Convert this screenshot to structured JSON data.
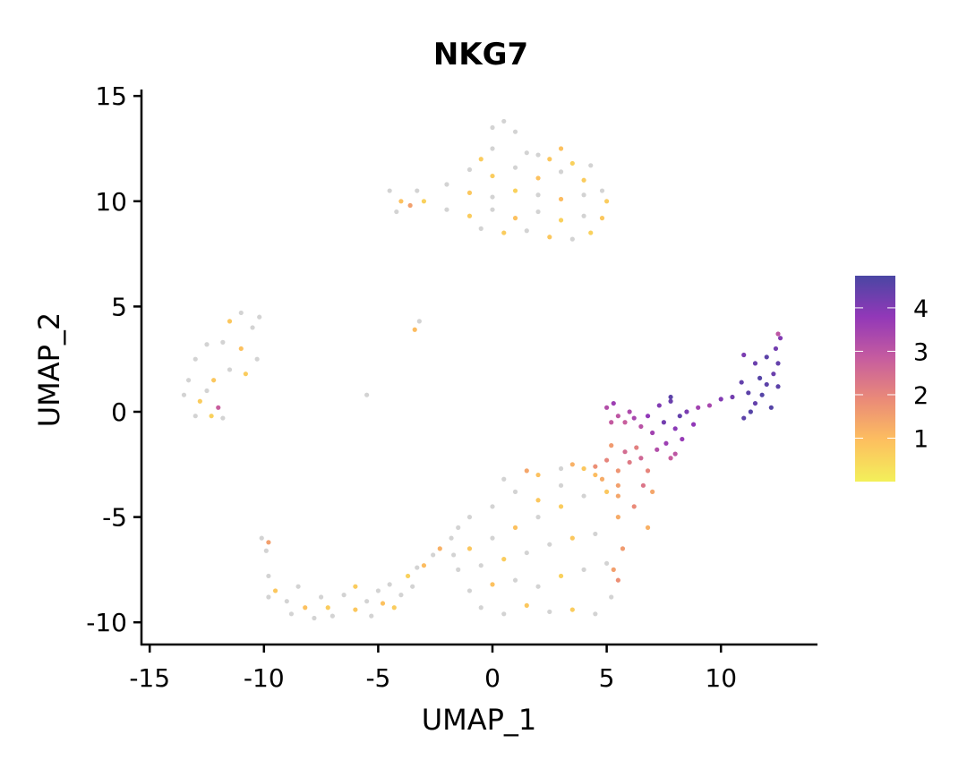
{
  "chart_data": {
    "type": "scatter",
    "title": "NKG7",
    "xlabel": "UMAP_1",
    "ylabel": "UMAP_2",
    "xlim": [
      -15.5,
      14.5
    ],
    "ylim": [
      -11,
      15.2
    ],
    "x_ticks": [
      -15,
      -10,
      -5,
      0,
      5,
      10
    ],
    "y_ticks": [
      -10,
      -5,
      0,
      5,
      10,
      15
    ],
    "grid": false,
    "zero_color": "#d3d3d3",
    "legend": {
      "type": "colorbar",
      "placement": "right",
      "ticks": [
        1,
        2,
        3,
        4
      ],
      "range": [
        0,
        4.74
      ],
      "colors": [
        "#f3f05a",
        "#fdbf5f",
        "#ea8a78",
        "#c65c9f",
        "#9238b8",
        "#4a46a3"
      ]
    },
    "point_format": [
      "UMAP_1",
      "UMAP_2",
      "expression"
    ],
    "points": [
      [
        0,
        13.5,
        0
      ],
      [
        0.5,
        13.8,
        0
      ],
      [
        1,
        13.3,
        0
      ],
      [
        0,
        12.5,
        0
      ],
      [
        1.5,
        12.3,
        0
      ],
      [
        2.5,
        12,
        0.8
      ],
      [
        3.5,
        11.8,
        0.6
      ],
      [
        4.3,
        11.7,
        0
      ],
      [
        -1,
        11.5,
        0
      ],
      [
        0,
        11.2,
        0.7
      ],
      [
        1,
        11.6,
        0
      ],
      [
        2,
        11.1,
        0.9
      ],
      [
        3,
        11.4,
        0
      ],
      [
        4,
        11,
        0.7
      ],
      [
        4.8,
        10.5,
        0
      ],
      [
        -2,
        10.8,
        0
      ],
      [
        -1,
        10.4,
        0.8
      ],
      [
        0,
        10.2,
        0
      ],
      [
        1,
        10.5,
        0.6
      ],
      [
        2,
        10.3,
        0
      ],
      [
        3,
        10.1,
        1.0
      ],
      [
        4,
        10.3,
        0
      ],
      [
        5,
        10,
        0.7
      ],
      [
        -3,
        10,
        0.6
      ],
      [
        -2,
        9.6,
        0
      ],
      [
        -1,
        9.3,
        0.7
      ],
      [
        0,
        9.6,
        0
      ],
      [
        1,
        9.2,
        0.9
      ],
      [
        2,
        9.5,
        0
      ],
      [
        3,
        9.1,
        0.6
      ],
      [
        4,
        9.3,
        0
      ],
      [
        4.8,
        9.2,
        0.8
      ],
      [
        -0.5,
        8.7,
        0
      ],
      [
        0.5,
        8.5,
        0.7
      ],
      [
        1.5,
        8.6,
        0
      ],
      [
        2.5,
        8.3,
        0.8
      ],
      [
        3.5,
        8.2,
        0
      ],
      [
        4.3,
        8.5,
        0.6
      ],
      [
        -4.5,
        10.5,
        0
      ],
      [
        -4,
        10,
        0.9
      ],
      [
        -3.6,
        9.8,
        1.5
      ],
      [
        -4.2,
        9.5,
        0
      ],
      [
        -3.3,
        10.5,
        0
      ],
      [
        -0.5,
        12,
        0.7
      ],
      [
        2,
        12.2,
        0
      ],
      [
        3,
        12.5,
        0.9
      ],
      [
        -11,
        4.7,
        0
      ],
      [
        -10.2,
        4.5,
        0
      ],
      [
        -11.5,
        4.3,
        0.8
      ],
      [
        -10.5,
        4,
        0
      ],
      [
        -11.8,
        3.3,
        0
      ],
      [
        -11,
        3,
        0.9
      ],
      [
        -10.3,
        2.5,
        0
      ],
      [
        -12.5,
        3.2,
        0
      ],
      [
        -11.5,
        2,
        0
      ],
      [
        -10.8,
        1.8,
        0.7
      ],
      [
        -13,
        2.5,
        0
      ],
      [
        -12.2,
        1.5,
        0.8
      ],
      [
        -13.3,
        1.5,
        0
      ],
      [
        -13.5,
        0.8,
        0
      ],
      [
        -12.8,
        0.5,
        0.7
      ],
      [
        -12,
        0.2,
        2.8
      ],
      [
        -13,
        -0.2,
        0
      ],
      [
        -12.3,
        -0.2,
        0.6
      ],
      [
        -11.8,
        -0.3,
        0
      ],
      [
        -12.5,
        1,
        0
      ],
      [
        -10.1,
        -6,
        0
      ],
      [
        -9.8,
        -6.2,
        1.5
      ],
      [
        -9.9,
        -6.6,
        0
      ],
      [
        -9.8,
        -7.8,
        0
      ],
      [
        -9.5,
        -8.5,
        0.8
      ],
      [
        -9.8,
        -8.8,
        0
      ],
      [
        -9,
        -9,
        0
      ],
      [
        -8.5,
        -8.3,
        0
      ],
      [
        -8.2,
        -9.3,
        0.9
      ],
      [
        -7.5,
        -8.8,
        0
      ],
      [
        -7,
        -9.7,
        0
      ],
      [
        -7.2,
        -9.3,
        0.7
      ],
      [
        -6.5,
        -8.7,
        0
      ],
      [
        -6,
        -9.4,
        0.8
      ],
      [
        -5.5,
        -9,
        0
      ],
      [
        -5,
        -8.5,
        0
      ],
      [
        -4.8,
        -9.1,
        0.9
      ],
      [
        -4.5,
        -8.2,
        0
      ],
      [
        -4,
        -8.7,
        0
      ],
      [
        -3.7,
        -7.8,
        0.6
      ],
      [
        -3.3,
        -7.4,
        0
      ],
      [
        -3,
        -7.3,
        1.0
      ],
      [
        -2.6,
        -6.8,
        0
      ],
      [
        -3.5,
        -8.3,
        0
      ],
      [
        -6,
        -8.3,
        0.7
      ],
      [
        -8.8,
        -9.6,
        0
      ],
      [
        -7.8,
        -9.8,
        0
      ],
      [
        -5.3,
        -9.7,
        0
      ],
      [
        -4.3,
        -9.3,
        0.7
      ],
      [
        -2.3,
        -6.5,
        1.2
      ],
      [
        -1.5,
        -5.5,
        0
      ],
      [
        -1.8,
        -6,
        0
      ],
      [
        -1,
        -5,
        0
      ],
      [
        0,
        -4.5,
        0
      ],
      [
        1,
        -3.8,
        0
      ],
      [
        2,
        -3,
        0.9
      ],
      [
        3,
        -2.7,
        0
      ],
      [
        3.5,
        -2.5,
        1.2
      ],
      [
        4,
        -2.7,
        0.8
      ],
      [
        1.5,
        -2.8,
        1.4
      ],
      [
        -1,
        -6.5,
        0.8
      ],
      [
        0,
        -6,
        0
      ],
      [
        1,
        -5.5,
        0.9
      ],
      [
        2,
        -5,
        0
      ],
      [
        3,
        -4.5,
        0.7
      ],
      [
        4,
        -4,
        0
      ],
      [
        5,
        -3.8,
        0.8
      ],
      [
        -1.5,
        -7.5,
        0
      ],
      [
        -0.5,
        -7.3,
        0
      ],
      [
        0.5,
        -7,
        0.7
      ],
      [
        1.5,
        -6.7,
        0
      ],
      [
        2.5,
        -6.3,
        0
      ],
      [
        3.5,
        -6,
        0.8
      ],
      [
        4.5,
        -5.8,
        0
      ],
      [
        5.5,
        -5,
        1.3
      ],
      [
        -1,
        -8.5,
        0
      ],
      [
        0,
        -8.2,
        0.9
      ],
      [
        1,
        -8,
        0
      ],
      [
        2,
        -8.3,
        0
      ],
      [
        3,
        -7.8,
        0.6
      ],
      [
        4,
        -7.5,
        0
      ],
      [
        5,
        -7.2,
        0
      ],
      [
        5.3,
        -7.5,
        1.5
      ],
      [
        -0.5,
        -9.3,
        0
      ],
      [
        0.5,
        -9.6,
        0
      ],
      [
        1.5,
        -9.2,
        0.8
      ],
      [
        2.5,
        -9.5,
        0
      ],
      [
        3.5,
        -9.4,
        0.7
      ],
      [
        4.5,
        -9.6,
        0
      ],
      [
        5.2,
        -8.8,
        0
      ],
      [
        5.5,
        -8,
        1.8
      ],
      [
        -1.7,
        -6.8,
        0
      ],
      [
        2,
        -4.2,
        0.8
      ],
      [
        3,
        -3.5,
        0
      ],
      [
        4.5,
        -3,
        1.0
      ],
      [
        0.5,
        -3.2,
        0
      ],
      [
        5.5,
        -4,
        1.4
      ],
      [
        5.7,
        -6.5,
        1.6
      ],
      [
        4.5,
        -2.6,
        1.8
      ],
      [
        5,
        -2.3,
        2.0
      ],
      [
        5.5,
        -2.8,
        1.7
      ],
      [
        6,
        -2.4,
        2.2
      ],
      [
        5.8,
        -1.9,
        2.5
      ],
      [
        6.3,
        -1.7,
        2.1
      ],
      [
        5.2,
        -1.6,
        1.6
      ],
      [
        4.8,
        -3.2,
        1.3
      ],
      [
        6.5,
        -2.2,
        2.6
      ],
      [
        6.8,
        -2.8,
        2.0
      ],
      [
        5.5,
        -3.5,
        1.5
      ],
      [
        6.6,
        -3.5,
        2.3
      ],
      [
        7,
        -3.8,
        1.4
      ],
      [
        6.2,
        -4.5,
        1.9
      ],
      [
        6.8,
        -5.5,
        1.2
      ],
      [
        7.8,
        -2.2,
        2.8
      ],
      [
        5,
        0.2,
        3.2
      ],
      [
        5.3,
        0.4,
        3.6
      ],
      [
        5.5,
        -0.2,
        3.0
      ],
      [
        5.8,
        -0.5,
        2.8
      ],
      [
        6.2,
        -0.3,
        3.4
      ],
      [
        6.5,
        -0.7,
        3.1
      ],
      [
        6.8,
        -0.2,
        3.8
      ],
      [
        7,
        -1,
        3.5
      ],
      [
        7.3,
        0.3,
        4.0
      ],
      [
        7.5,
        -0.5,
        4.2
      ],
      [
        7.8,
        0.5,
        4.3
      ],
      [
        8,
        -0.8,
        3.9
      ],
      [
        8.2,
        -0.2,
        4.4
      ],
      [
        8.5,
        0,
        4.1
      ],
      [
        8.3,
        -1.3,
        3.7
      ],
      [
        7.6,
        -1.5,
        3.6
      ],
      [
        8.8,
        -0.6,
        3.8
      ],
      [
        9,
        0.2,
        3.5
      ],
      [
        9.5,
        0.3,
        3.4
      ],
      [
        8,
        -2,
        3.0
      ],
      [
        7.2,
        -1.8,
        3.2
      ],
      [
        6,
        0,
        3.3
      ],
      [
        7.8,
        0.7,
        4.5
      ],
      [
        5.2,
        -0.5,
        2.9
      ],
      [
        10,
        0.6,
        4.0
      ],
      [
        10.5,
        0.7,
        4.2
      ],
      [
        11,
        -0.3,
        4.5
      ],
      [
        11.3,
        0,
        4.6
      ],
      [
        11.5,
        0.4,
        4.4
      ],
      [
        11.8,
        0.8,
        4.6
      ],
      [
        12,
        1.3,
        4.5
      ],
      [
        12.3,
        1.8,
        4.3
      ],
      [
        12.5,
        2.3,
        4.4
      ],
      [
        12.4,
        3,
        4.2
      ],
      [
        12.6,
        3.5,
        4.0
      ],
      [
        11,
        2.7,
        4.1
      ],
      [
        11.5,
        2.3,
        4.3
      ],
      [
        12,
        2.6,
        4.5
      ],
      [
        10.9,
        1.4,
        4.4
      ],
      [
        11.7,
        1.6,
        4.6
      ],
      [
        12.5,
        1.2,
        4.5
      ],
      [
        11.2,
        0.9,
        4.5
      ],
      [
        12.2,
        0.2,
        4.6
      ],
      [
        12.5,
        3.7,
        3.0
      ],
      [
        -3.4,
        3.9,
        1.0
      ],
      [
        -3.2,
        4.3,
        0
      ],
      [
        -5.5,
        0.8,
        0
      ]
    ]
  }
}
